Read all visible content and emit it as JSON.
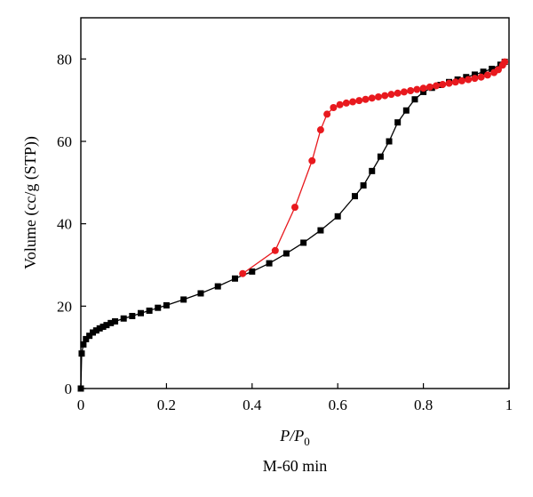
{
  "chart_data": {
    "type": "scatter",
    "xlabel": "P/P0",
    "xlabel_main": "P/P",
    "xlabel_sub": "0",
    "ylabel": "Volume (cc/g (STP))",
    "caption": "M-60 min",
    "xlim": [
      0,
      1
    ],
    "ylim": [
      0,
      90
    ],
    "xticks": [
      0,
      0.2,
      0.4,
      0.6,
      0.8,
      1
    ],
    "xtick_labels": [
      "0",
      "0.2",
      "0.4",
      "0.6",
      "0.8",
      "1"
    ],
    "yticks": [
      0,
      20,
      40,
      60,
      80
    ],
    "ytick_labels": [
      "0",
      "20",
      "40",
      "60",
      "80"
    ],
    "grid": false,
    "series": [
      {
        "marker": "square",
        "color": "#000000",
        "points": [
          [
            0.0,
            0.0
          ],
          [
            0.002,
            8.5
          ],
          [
            0.006,
            10.7
          ],
          [
            0.012,
            12.0
          ],
          [
            0.02,
            12.8
          ],
          [
            0.028,
            13.6
          ],
          [
            0.036,
            14.1
          ],
          [
            0.044,
            14.6
          ],
          [
            0.052,
            15.0
          ],
          [
            0.06,
            15.4
          ],
          [
            0.07,
            15.9
          ],
          [
            0.08,
            16.3
          ],
          [
            0.1,
            17.0
          ],
          [
            0.12,
            17.6
          ],
          [
            0.14,
            18.3
          ],
          [
            0.16,
            18.9
          ],
          [
            0.18,
            19.6
          ],
          [
            0.2,
            20.2
          ],
          [
            0.24,
            21.6
          ],
          [
            0.28,
            23.1
          ],
          [
            0.32,
            24.8
          ],
          [
            0.36,
            26.7
          ],
          [
            0.4,
            28.4
          ],
          [
            0.44,
            30.4
          ],
          [
            0.48,
            32.8
          ],
          [
            0.52,
            35.4
          ],
          [
            0.56,
            38.4
          ],
          [
            0.6,
            41.8
          ],
          [
            0.64,
            46.7
          ],
          [
            0.66,
            49.3
          ],
          [
            0.68,
            52.8
          ],
          [
            0.7,
            56.3
          ],
          [
            0.72,
            60.0
          ],
          [
            0.74,
            64.6
          ],
          [
            0.76,
            67.5
          ],
          [
            0.78,
            70.2
          ],
          [
            0.8,
            72.0
          ],
          [
            0.82,
            73.0
          ],
          [
            0.84,
            73.7
          ],
          [
            0.86,
            74.4
          ],
          [
            0.88,
            75.0
          ],
          [
            0.9,
            75.6
          ],
          [
            0.92,
            76.2
          ],
          [
            0.94,
            76.9
          ],
          [
            0.96,
            77.6
          ],
          [
            0.98,
            78.6
          ],
          [
            0.99,
            79.3
          ]
        ]
      },
      {
        "marker": "circle",
        "color": "#e8191e",
        "points": [
          [
            0.378,
            27.9
          ],
          [
            0.454,
            33.5
          ],
          [
            0.5,
            44.0
          ],
          [
            0.54,
            55.3
          ],
          [
            0.56,
            62.8
          ],
          [
            0.575,
            66.6
          ],
          [
            0.59,
            68.2
          ],
          [
            0.605,
            68.9
          ],
          [
            0.62,
            69.3
          ],
          [
            0.635,
            69.6
          ],
          [
            0.65,
            69.9
          ],
          [
            0.665,
            70.2
          ],
          [
            0.68,
            70.5
          ],
          [
            0.695,
            70.8
          ],
          [
            0.71,
            71.1
          ],
          [
            0.725,
            71.4
          ],
          [
            0.74,
            71.7
          ],
          [
            0.755,
            72.0
          ],
          [
            0.77,
            72.3
          ],
          [
            0.785,
            72.6
          ],
          [
            0.8,
            72.9
          ],
          [
            0.815,
            73.2
          ],
          [
            0.83,
            73.5
          ],
          [
            0.845,
            73.8
          ],
          [
            0.86,
            74.1
          ],
          [
            0.875,
            74.4
          ],
          [
            0.89,
            74.7
          ],
          [
            0.905,
            75.0
          ],
          [
            0.92,
            75.3
          ],
          [
            0.935,
            75.6
          ],
          [
            0.95,
            76.1
          ],
          [
            0.965,
            76.7
          ],
          [
            0.975,
            77.4
          ],
          [
            0.985,
            78.5
          ],
          [
            0.99,
            79.3
          ]
        ]
      }
    ]
  }
}
